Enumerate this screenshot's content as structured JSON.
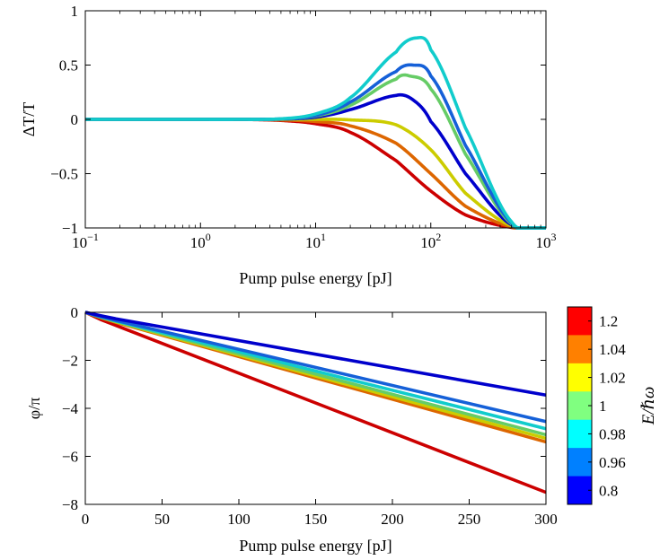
{
  "chart_data": [
    {
      "type": "line",
      "xscale": "log",
      "xlim": [
        0.1,
        1000
      ],
      "ylim": [
        -1,
        1
      ],
      "xlabel": "Pump pulse energy [pJ]",
      "ylabel": "ΔT/T",
      "x_ticks": [
        {
          "base": "10",
          "exp": "−1"
        },
        {
          "base": "10",
          "exp": "0"
        },
        {
          "base": "10",
          "exp": "1"
        },
        {
          "base": "10",
          "exp": "2"
        },
        {
          "base": "10",
          "exp": "3"
        }
      ],
      "x_tick_values": [
        0.1,
        1,
        10,
        100,
        1000
      ],
      "y_ticks": [
        "−1",
        "−0.5",
        "0",
        "0.5",
        "1"
      ],
      "y_tick_values": [
        -1,
        -0.5,
        0,
        0.5,
        1
      ],
      "grid": false,
      "series": [
        {
          "color": "#cc0000",
          "x": [
            0.1,
            1,
            2,
            5,
            10,
            20,
            50,
            100,
            200,
            500,
            1000
          ],
          "y": [
            0,
            0,
            0,
            -0.01,
            -0.04,
            -0.12,
            -0.38,
            -0.66,
            -0.88,
            -0.995,
            -1
          ]
        },
        {
          "color": "#dd6600",
          "x": [
            0.1,
            1,
            2,
            5,
            10,
            20,
            50,
            100,
            200,
            500,
            1000
          ],
          "y": [
            0,
            0,
            0,
            -0.005,
            -0.02,
            -0.06,
            -0.22,
            -0.5,
            -0.8,
            -0.99,
            -1
          ]
        },
        {
          "color": "#cccc00",
          "x": [
            0.1,
            1,
            2,
            5,
            10,
            20,
            50,
            100,
            200,
            500,
            1000
          ],
          "y": [
            0,
            0,
            0,
            0,
            0,
            -0.005,
            -0.05,
            -0.28,
            -0.68,
            -0.98,
            -1
          ]
        },
        {
          "color": "#0000cc",
          "x": [
            0.1,
            1,
            2,
            5,
            10,
            20,
            50,
            70,
            100,
            200,
            500,
            1000
          ],
          "y": [
            0,
            0,
            0,
            0.002,
            0.02,
            0.09,
            0.22,
            0.18,
            -0.02,
            -0.5,
            -0.97,
            -1
          ]
        },
        {
          "color": "#66cc66",
          "x": [
            0.1,
            1,
            2,
            5,
            10,
            20,
            50,
            65,
            100,
            200,
            500,
            1000
          ],
          "y": [
            0,
            0,
            0,
            0.003,
            0.03,
            0.13,
            0.37,
            0.4,
            0.28,
            -0.32,
            -0.96,
            -1
          ]
        },
        {
          "color": "#1560d8",
          "x": [
            0.1,
            1,
            2,
            5,
            10,
            20,
            50,
            70,
            100,
            200,
            500,
            1000
          ],
          "y": [
            0,
            0,
            0,
            0.004,
            0.035,
            0.16,
            0.44,
            0.5,
            0.4,
            -0.24,
            -0.95,
            -1
          ]
        },
        {
          "color": "#11cccc",
          "x": [
            0.1,
            1,
            2,
            5,
            10,
            20,
            50,
            75,
            100,
            200,
            500,
            1000
          ],
          "y": [
            0,
            0,
            0,
            0.005,
            0.05,
            0.2,
            0.62,
            0.75,
            0.64,
            -0.08,
            -0.94,
            -1
          ]
        }
      ]
    },
    {
      "type": "line",
      "xlim": [
        0,
        300
      ],
      "ylim": [
        -8,
        0
      ],
      "xlabel": "Pump pulse energy [pJ]",
      "ylabel": "φ/π",
      "x_ticks": [
        "0",
        "50",
        "100",
        "150",
        "200",
        "250",
        "300"
      ],
      "x_tick_values": [
        0,
        50,
        100,
        150,
        200,
        250,
        300
      ],
      "y_ticks": [
        "−8",
        "−6",
        "−4",
        "−2",
        "0"
      ],
      "y_tick_values": [
        -8,
        -6,
        -4,
        -2,
        0
      ],
      "grid": false,
      "series": [
        {
          "color": "#cc0000",
          "x": [
            0,
            10,
            20,
            300
          ],
          "y": [
            0,
            -0.3,
            -0.55,
            -7.5
          ]
        },
        {
          "color": "#dd6600",
          "x": [
            0,
            10,
            20,
            300
          ],
          "y": [
            0,
            -0.22,
            -0.42,
            -5.4
          ]
        },
        {
          "color": "#cccc00",
          "x": [
            0,
            10,
            20,
            300
          ],
          "y": [
            0,
            -0.21,
            -0.4,
            -5.25
          ]
        },
        {
          "color": "#66cc66",
          "x": [
            0,
            10,
            20,
            300
          ],
          "y": [
            0,
            -0.2,
            -0.38,
            -5.1
          ]
        },
        {
          "color": "#11cccc",
          "x": [
            0,
            10,
            20,
            300
          ],
          "y": [
            0,
            -0.19,
            -0.36,
            -4.85
          ]
        },
        {
          "color": "#1560d8",
          "x": [
            0,
            10,
            20,
            300
          ],
          "y": [
            0,
            -0.18,
            -0.34,
            -4.55
          ]
        },
        {
          "color": "#0000cc",
          "x": [
            0,
            10,
            20,
            300
          ],
          "y": [
            0,
            -0.14,
            -0.27,
            -3.45
          ]
        }
      ]
    }
  ],
  "colorbar": {
    "title": "E/ℏω",
    "entries": [
      {
        "label": "1.2",
        "color": "#ff0000"
      },
      {
        "label": "1.04",
        "color": "#ff8000"
      },
      {
        "label": "1.02",
        "color": "#ffff00"
      },
      {
        "label": "1",
        "color": "#80ff80"
      },
      {
        "label": "0.98",
        "color": "#00ffff"
      },
      {
        "label": "0.96",
        "color": "#0080ff"
      },
      {
        "label": "0.8",
        "color": "#0000ff"
      }
    ]
  }
}
